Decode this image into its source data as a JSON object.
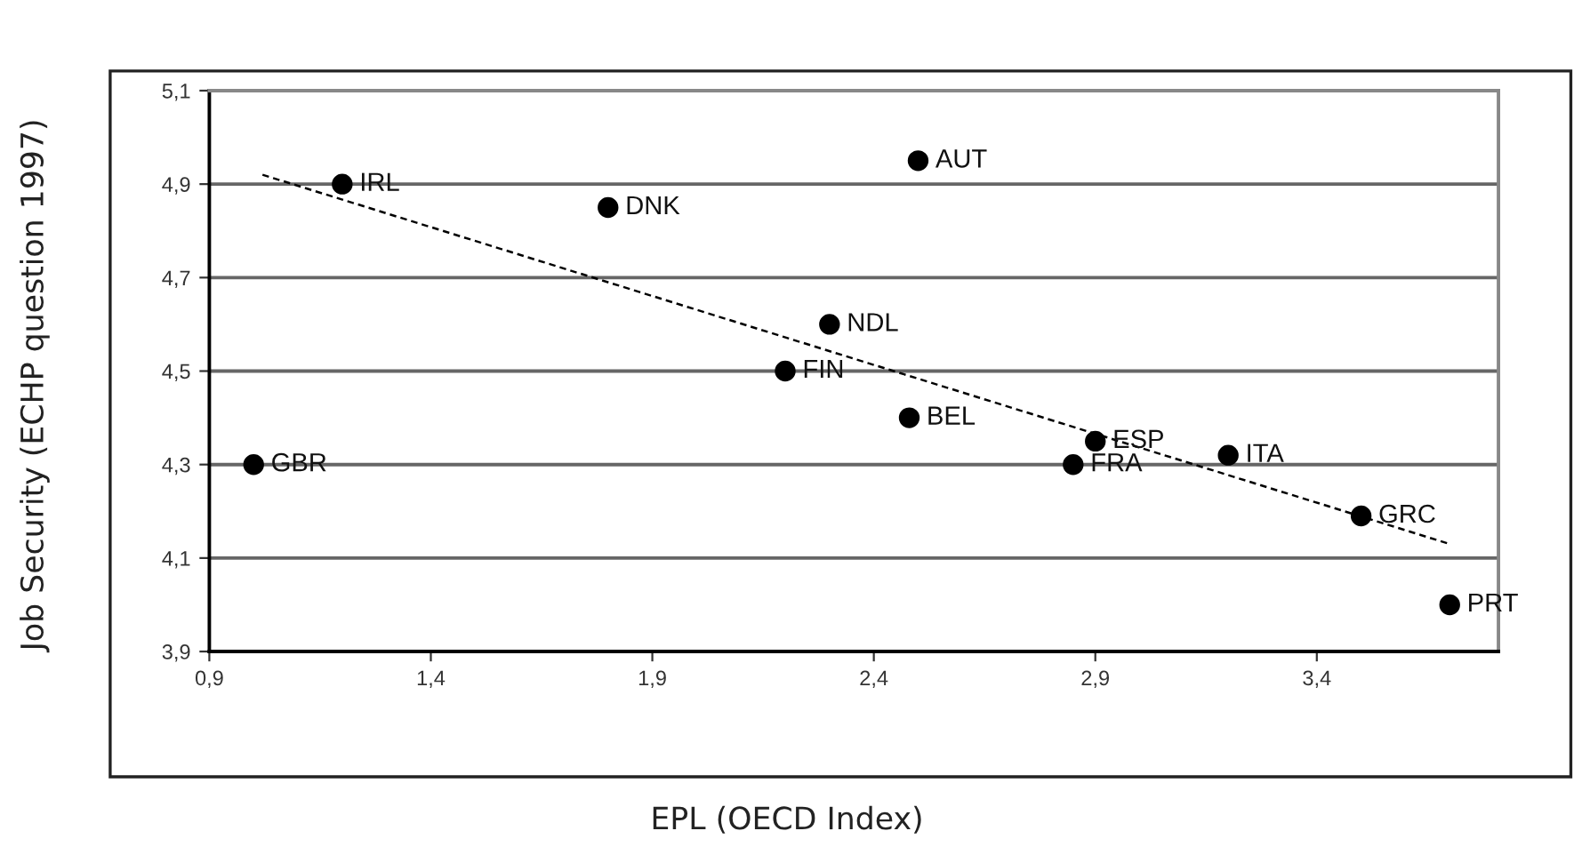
{
  "chart_data": {
    "type": "scatter",
    "xlabel": "EPL (OECD Index)",
    "ylabel": "Job Security (ECHP question 1997)",
    "xlim": [
      0.9,
      3.81
    ],
    "ylim": [
      3.9,
      5.1
    ],
    "xticks": [
      {
        "value": 0.9,
        "label": "0,9"
      },
      {
        "value": 1.4,
        "label": "1,4"
      },
      {
        "value": 1.9,
        "label": "1,9"
      },
      {
        "value": 2.4,
        "label": "2,4"
      },
      {
        "value": 2.9,
        "label": "2,9"
      },
      {
        "value": 3.4,
        "label": "3,4"
      }
    ],
    "yticks": [
      {
        "value": 3.9,
        "label": "3,9"
      },
      {
        "value": 4.1,
        "label": "4,1"
      },
      {
        "value": 4.3,
        "label": "4,3"
      },
      {
        "value": 4.5,
        "label": "4,5"
      },
      {
        "value": 4.7,
        "label": "4,7"
      },
      {
        "value": 4.9,
        "label": "4,9"
      },
      {
        "value": 5.1,
        "label": "5,1"
      }
    ],
    "grid": "y",
    "legend": false,
    "marker": "circle",
    "series": [
      {
        "name": "IRL",
        "color": "#000000",
        "x": [
          1.2
        ],
        "values": [
          4.9
        ]
      },
      {
        "name": "DNK",
        "color": "#000000",
        "x": [
          1.8
        ],
        "values": [
          4.85
        ]
      },
      {
        "name": "GBR",
        "color": "#000000",
        "x": [
          1.0
        ],
        "values": [
          4.3
        ]
      },
      {
        "name": "FIN",
        "color": "#000000",
        "x": [
          2.2
        ],
        "values": [
          4.5
        ]
      },
      {
        "name": "NDL",
        "color": "#000000",
        "x": [
          2.3
        ],
        "values": [
          4.6
        ]
      },
      {
        "name": "AUT",
        "color": "#000000",
        "x": [
          2.5
        ],
        "values": [
          4.95
        ]
      },
      {
        "name": "BEL",
        "color": "#000000",
        "x": [
          2.48
        ],
        "values": [
          4.4
        ]
      },
      {
        "name": "ESP",
        "color": "#000000",
        "x": [
          2.9
        ],
        "values": [
          4.35
        ]
      },
      {
        "name": "FRA",
        "color": "#000000",
        "x": [
          2.85
        ],
        "values": [
          4.3
        ]
      },
      {
        "name": "ITA",
        "color": "#000000",
        "x": [
          3.2
        ],
        "values": [
          4.32
        ]
      },
      {
        "name": "GRC",
        "color": "#000000",
        "x": [
          3.5
        ],
        "values": [
          4.19
        ]
      },
      {
        "name": "PRT",
        "color": "#000000",
        "x": [
          3.7
        ],
        "values": [
          4.0
        ]
      },
      {
        "type": "line",
        "color": "#000000",
        "line_style": "dashed",
        "marker": "none",
        "x": [
          1.02,
          3.7
        ],
        "values": [
          4.92,
          4.13
        ]
      }
    ]
  }
}
